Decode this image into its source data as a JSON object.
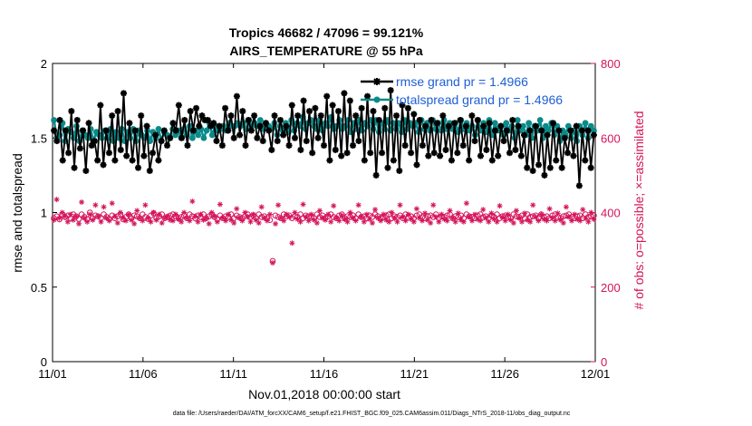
{
  "chart_data": {
    "type": "line",
    "title": "Tropics 46682 / 47096 = 99.121%",
    "subtitle": "AIRS_TEMPERATURE @ 55 hPa",
    "xlabel": "Nov.01,2018 00:00:00 start",
    "ylabel": "rmse and totalspread",
    "ylabel_right": "# of obs: o=possible; ×=assimilated",
    "x_ticks": [
      "11/01",
      "11/06",
      "11/11",
      "11/16",
      "11/21",
      "11/26",
      "12/01"
    ],
    "x_range_days": [
      0,
      30
    ],
    "ylim": [
      0,
      2
    ],
    "y_ticks": [
      "0",
      "0.5",
      "1",
      "1.5",
      "2"
    ],
    "ylim_right": [
      0,
      800
    ],
    "y_ticks_right": [
      "0",
      "200",
      "400",
      "600",
      "800"
    ],
    "legend_position": "top-right",
    "series": [
      {
        "name": "rmse grand pr = 1.4966",
        "color": "#000000",
        "marker": "asterisk",
        "values": [
          1.55,
          1.48,
          1.62,
          1.35,
          1.55,
          1.4,
          1.68,
          1.3,
          1.62,
          1.43,
          1.55,
          1.28,
          1.6,
          1.45,
          1.48,
          1.35,
          1.72,
          1.32,
          1.55,
          1.4,
          1.65,
          1.35,
          1.68,
          1.42,
          1.8,
          1.38,
          1.6,
          1.35,
          1.55,
          1.3,
          1.65,
          1.38,
          1.58,
          1.28,
          1.4,
          1.52,
          1.35,
          1.48,
          1.55,
          1.45,
          1.5,
          1.6,
          1.55,
          1.72,
          1.5,
          1.62,
          1.45,
          1.68,
          1.55,
          1.7,
          1.58,
          1.65,
          1.62,
          1.62,
          1.58,
          1.6,
          1.48,
          1.58,
          1.45,
          1.7,
          1.55,
          1.65,
          1.5,
          1.78,
          1.52,
          1.68,
          1.45,
          1.62,
          1.55,
          1.65,
          1.5,
          1.58,
          1.48,
          1.6,
          1.55,
          1.42,
          1.65,
          1.48,
          1.62,
          1.52,
          1.58,
          1.45,
          1.72,
          1.5,
          1.65,
          1.42,
          1.75,
          1.48,
          1.68,
          1.4,
          1.7,
          1.5,
          1.65,
          1.45,
          1.78,
          1.35,
          1.72,
          1.42,
          1.68,
          1.38,
          1.8,
          1.4,
          1.75,
          1.45,
          1.65,
          1.48,
          1.7,
          1.35,
          1.78,
          1.4,
          1.68,
          1.25,
          1.62,
          1.4,
          1.7,
          1.3,
          1.82,
          1.35,
          1.65,
          1.28,
          1.72,
          1.45,
          1.7,
          1.4,
          1.66,
          1.32,
          1.62,
          1.45,
          1.58,
          1.38,
          1.62,
          1.4,
          1.6,
          1.38,
          1.65,
          1.42,
          1.58,
          1.35,
          1.6,
          1.4,
          1.62,
          1.45,
          1.58,
          1.35,
          1.65,
          1.48,
          1.62,
          1.38,
          1.58,
          1.42,
          1.6,
          1.35,
          1.55,
          1.38,
          1.58,
          1.48,
          1.55,
          1.4,
          1.62,
          1.42,
          1.58,
          1.38,
          1.52,
          1.3,
          1.55,
          1.28,
          1.58,
          1.32,
          1.55,
          1.25,
          1.52,
          1.3,
          1.6,
          1.35,
          1.55,
          1.3,
          1.5,
          1.4,
          1.55,
          1.38,
          1.58,
          1.18,
          1.55,
          1.35,
          1.55,
          1.3,
          1.52
        ]
      },
      {
        "name": "totalspread grand pr = 1.4966",
        "color": "#0b8a8a",
        "marker": "circle",
        "values": [
          1.62,
          1.5,
          1.52,
          1.6,
          1.48,
          1.56,
          1.54,
          1.5,
          1.58,
          1.48,
          1.55,
          1.52,
          1.5,
          1.56,
          1.48,
          1.54,
          1.52,
          1.5,
          1.55,
          1.5,
          1.56,
          1.48,
          1.54,
          1.5,
          1.56,
          1.48,
          1.54,
          1.5,
          1.56,
          1.48,
          1.55,
          1.52,
          1.5,
          1.55,
          1.48,
          1.54,
          1.5,
          1.56,
          1.48,
          1.54,
          1.52,
          1.5,
          1.56,
          1.52,
          1.55,
          1.5,
          1.56,
          1.52,
          1.58,
          1.5,
          1.55,
          1.52,
          1.56,
          1.5,
          1.55,
          1.6,
          1.52,
          1.58,
          1.55,
          1.56,
          1.58,
          1.55,
          1.6,
          1.58,
          1.58,
          1.6,
          1.58,
          1.6,
          1.56,
          1.62,
          1.58,
          1.6,
          1.58,
          1.62,
          1.56,
          1.6,
          1.58,
          1.56,
          1.6,
          1.52,
          1.58,
          1.55,
          1.6,
          1.54,
          1.62,
          1.55,
          1.6,
          1.58,
          1.64,
          1.56,
          1.6,
          1.62,
          1.58,
          1.56,
          1.62,
          1.55,
          1.6,
          1.58,
          1.64,
          1.56,
          1.58,
          1.62,
          1.56,
          1.58,
          1.62,
          1.54,
          1.6,
          1.56,
          1.62,
          1.55,
          1.6,
          1.58,
          1.62,
          1.56,
          1.62,
          1.54,
          1.6,
          1.56,
          1.62,
          1.55,
          1.6,
          1.56,
          1.6,
          1.54,
          1.62,
          1.56,
          1.6,
          1.58,
          1.6,
          1.54,
          1.62,
          1.56,
          1.6,
          1.55,
          1.62,
          1.56,
          1.6,
          1.55,
          1.62,
          1.56,
          1.6,
          1.56,
          1.6,
          1.54,
          1.62,
          1.56,
          1.6,
          1.55,
          1.58,
          1.52,
          1.62,
          1.55,
          1.6,
          1.54,
          1.62,
          1.52,
          1.6,
          1.55,
          1.58,
          1.52,
          1.6,
          1.55,
          1.58,
          1.5,
          1.62,
          1.55,
          1.58,
          1.52,
          1.6,
          1.5,
          1.58,
          1.55,
          1.62,
          1.5,
          1.58,
          1.55,
          1.6,
          1.52,
          1.58,
          1.48,
          1.55,
          1.52,
          1.58,
          1.5,
          1.55,
          1.48,
          1.58,
          1.52,
          1.6,
          1.5,
          1.58,
          1.55
        ]
      },
      {
        "name": "# obs possible",
        "axis": "right",
        "color": "#d4145a",
        "marker": "circle-open",
        "values": [
          385,
          390,
          382,
          395,
          388,
          392,
          385,
          395,
          390,
          383,
          395,
          388,
          382,
          400,
          385,
          392,
          390,
          385,
          395,
          388,
          383,
          392,
          385,
          390,
          395,
          382,
          388,
          395,
          385,
          392,
          390,
          385,
          395,
          388,
          383,
          392,
          398,
          385,
          390,
          395,
          385,
          388,
          392,
          395,
          390,
          385,
          388,
          392,
          385,
          395,
          390,
          385,
          392,
          388,
          395,
          385,
          390,
          395,
          388,
          383,
          392,
          385,
          390,
          388,
          395,
          385,
          392,
          388,
          385,
          390,
          395,
          388,
          392,
          385,
          395,
          388,
          390,
          385,
          380,
          270,
          392,
          388,
          385,
          395,
          390,
          392,
          385,
          390,
          388,
          395,
          385,
          392,
          390,
          388,
          385,
          395,
          388,
          392,
          385,
          390,
          395,
          388,
          385,
          392,
          395,
          385,
          390,
          388,
          392,
          385,
          395,
          388,
          390,
          385,
          392,
          388,
          395,
          390,
          385,
          388,
          392,
          395,
          385,
          390,
          388,
          392,
          385,
          395,
          388,
          390,
          385,
          392,
          395,
          388,
          385,
          390,
          392,
          388,
          395,
          385,
          390,
          388,
          392,
          395,
          385,
          390,
          388,
          392,
          385,
          395,
          390,
          388,
          385,
          392,
          395,
          388,
          390,
          385,
          392,
          388,
          395,
          385,
          390,
          392,
          388,
          385,
          395,
          390,
          388,
          392,
          385,
          395,
          388,
          390,
          392,
          385,
          395,
          388,
          390,
          385,
          392,
          395,
          388,
          385,
          390,
          392,
          395,
          388,
          385,
          390,
          392,
          385,
          395,
          388,
          390,
          392
        ]
      },
      {
        "name": "# obs assimilated",
        "axis": "right",
        "color": "#d4145a",
        "marker": "asterisk",
        "values": [
          380,
          435,
          385,
          400,
          390,
          375,
          395,
          380,
          390,
          370,
          428,
          385,
          375,
          395,
          380,
          420,
          390,
          375,
          415,
          385,
          378,
          425,
          390,
          372,
          400,
          385,
          378,
          395,
          380,
          370,
          405,
          385,
          378,
          420,
          385,
          375,
          400,
          380,
          395,
          372,
          385,
          390,
          380,
          378,
          395,
          382,
          375,
          400,
          385,
          378,
          430,
          390,
          375,
          395,
          380,
          385,
          370,
          400,
          390,
          375,
          422,
          385,
          378,
          395,
          380,
          372,
          410,
          385,
          378,
          400,
          388,
          375,
          395,
          380,
          372,
          415,
          385,
          378,
          395,
          265,
          370,
          420,
          385,
          378,
          395,
          388,
          318,
          400,
          382,
          375,
          422,
          388,
          378,
          395,
          380,
          372,
          405,
          385,
          380,
          395,
          375,
          418,
          385,
          378,
          392,
          382,
          375,
          400,
          385,
          378,
          420,
          388,
          375,
          395,
          382,
          372,
          408,
          385,
          378,
          395,
          380,
          375,
          400,
          385,
          375,
          420,
          388,
          378,
          395,
          382,
          375,
          410,
          385,
          378,
          398,
          380,
          372,
          420,
          388,
          375,
          395,
          382,
          378,
          405,
          385,
          375,
          398,
          380,
          375,
          425,
          388,
          378,
          395,
          382,
          378,
          408,
          385,
          375,
          398,
          382,
          375,
          418,
          388,
          378,
          395,
          380,
          372,
          405,
          385,
          375,
          398,
          380,
          375,
          420,
          388,
          378,
          395,
          382,
          378,
          410,
          385,
          378,
          398,
          380,
          372,
          415,
          388,
          378,
          395,
          382,
          378,
          408,
          385,
          375,
          400,
          382
        ]
      }
    ]
  },
  "footnote": "data file: /Users/raeder/DAI/ATM_forcXX/CAM6_setup/f.e21.FHIST_BGC.f09_025.CAM6assim.011/Diags_NTrS_2018-11/obs_diag_output.nc"
}
